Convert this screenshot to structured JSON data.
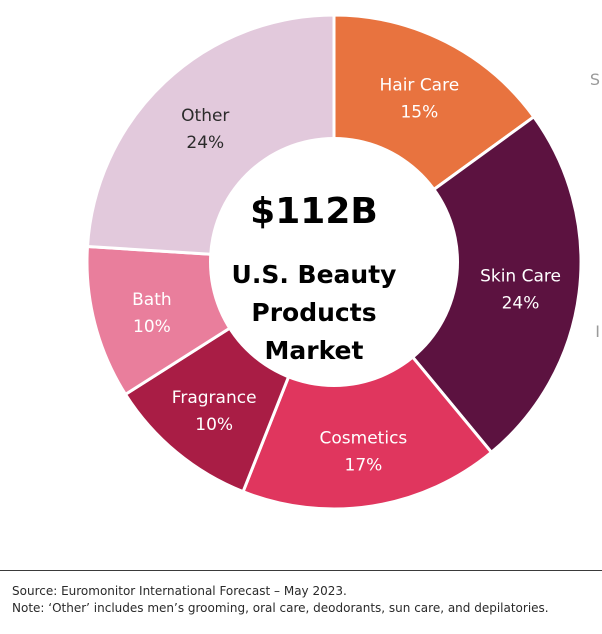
{
  "chart_data": {
    "type": "pie",
    "center_value": "$112B",
    "center_title_lines": [
      "U.S. Beauty",
      "Products",
      "Market"
    ],
    "slices": [
      {
        "label": "Hair Care",
        "value": 15,
        "value_label": "15%",
        "color": "#E8733F",
        "text_color": "#ffffff"
      },
      {
        "label": "Skin Care",
        "value": 24,
        "value_label": "24%",
        "color": "#5C1240",
        "text_color": "#ffffff"
      },
      {
        "label": "Cosmetics",
        "value": 17,
        "value_label": "17%",
        "color": "#E0365E",
        "text_color": "#ffffff"
      },
      {
        "label": "Fragrance",
        "value": 10,
        "value_label": "10%",
        "color": "#A91D45",
        "text_color": "#ffffff"
      },
      {
        "label": "Bath",
        "value": 10,
        "value_label": "10%",
        "color": "#E97E9C",
        "text_color": "#ffffff"
      },
      {
        "label": "Other",
        "value": 24,
        "value_label": "24%",
        "color": "#E2C9DC",
        "text_color": "#2b2b2b"
      }
    ]
  },
  "edge_glyphs": [
    "S",
    "I"
  ],
  "footer": {
    "source": "Source:  Euromonitor International Forecast – May 2023.",
    "note": "Note: ‘Other’ includes men’s grooming, oral care, deodorants, sun care, and depilatories."
  }
}
